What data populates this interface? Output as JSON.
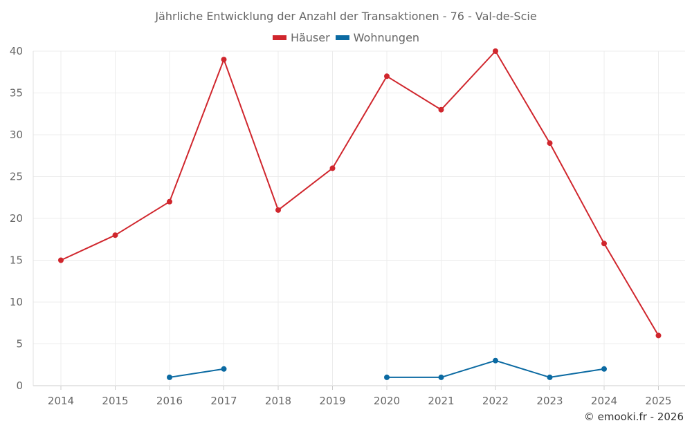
{
  "chart_data": {
    "type": "line",
    "title": "Jährliche Entwicklung der Anzahl der Transaktionen - 76 - Val-de-Scie",
    "x": [
      "2014",
      "2015",
      "2016",
      "2017",
      "2018",
      "2019",
      "2020",
      "2021",
      "2022",
      "2023",
      "2024",
      "2025"
    ],
    "series": [
      {
        "name": "Häuser",
        "color": "#d0262d",
        "values": [
          15,
          18,
          22,
          39,
          21,
          26,
          37,
          33,
          40,
          29,
          17,
          6
        ]
      },
      {
        "name": "Wohnungen",
        "color": "#0b6aa2",
        "values": [
          null,
          null,
          1,
          2,
          null,
          null,
          1,
          1,
          3,
          1,
          2,
          null
        ]
      }
    ],
    "ylim": [
      0,
      40
    ],
    "yticks": [
      0,
      5,
      10,
      15,
      20,
      25,
      30,
      35,
      40
    ],
    "grid": true,
    "legend": "top-center"
  },
  "footer": {
    "credit": "© emooki.fr - 2026"
  }
}
